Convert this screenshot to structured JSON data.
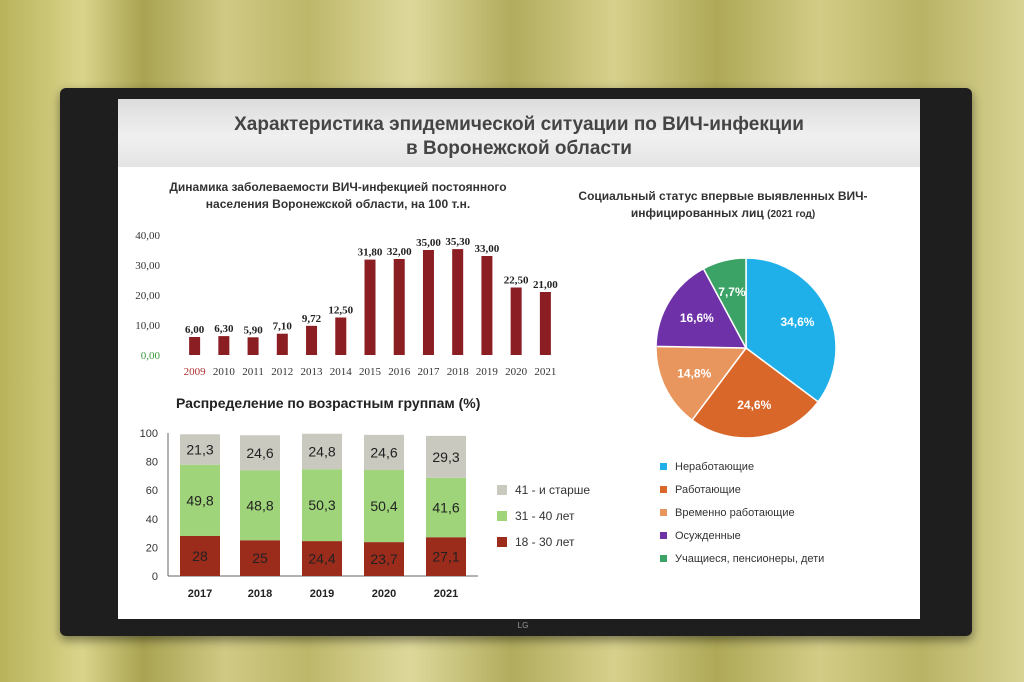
{
  "slide_title_line1": "Характеристика эпидемической ситуации по ВИЧ-инфекции",
  "slide_title_line2": "в Воронежской области",
  "tv_brand": "LG",
  "chart_data": [
    {
      "type": "bar",
      "title": "Динамика заболеваемости ВИЧ-инфекцией постоянного населения Воронежской области, на 100 т.н.",
      "categories": [
        "2009",
        "2010",
        "2011",
        "2012",
        "2013",
        "2014",
        "2015",
        "2016",
        "2017",
        "2018",
        "2019",
        "2020",
        "2021"
      ],
      "values": [
        6.0,
        6.3,
        5.9,
        7.1,
        9.72,
        12.5,
        31.8,
        32.0,
        35.0,
        35.3,
        33.0,
        22.5,
        21.0
      ],
      "value_labels": [
        "6,00",
        "6,30",
        "5,90",
        "7,10",
        "9,72",
        "12,50",
        "31,80",
        "32,00",
        "35,00",
        "35,30",
        "33,00",
        "22,50",
        "21,00"
      ],
      "y_tick_labels": [
        "40,00",
        "30,00",
        "20,00",
        "10,00",
        "0,00"
      ],
      "ylim": [
        0,
        40
      ],
      "color": "#8b1e22"
    },
    {
      "type": "bar",
      "stacked": true,
      "title": "Распределение по возрастным группам (%)",
      "categories": [
        "2017",
        "2018",
        "2019",
        "2020",
        "2021"
      ],
      "series": [
        {
          "name": "18 - 30 лет",
          "values": [
            28,
            25,
            24.4,
            23.7,
            27.1
          ],
          "labels": [
            "28",
            "25",
            "24,4",
            "23,7",
            "27,1"
          ],
          "color": "#9b2b1a"
        },
        {
          "name": "31 - 40 лет",
          "values": [
            49.8,
            48.8,
            50.3,
            50.4,
            41.6
          ],
          "labels": [
            "49,8",
            "48,8",
            "50,3",
            "50,4",
            "41,6"
          ],
          "color": "#9fd47a"
        },
        {
          "name": "41 - и старше",
          "values": [
            21.3,
            24.6,
            24.8,
            24.6,
            29.3
          ],
          "labels": [
            "21,3",
            "24,6",
            "24,8",
            "24,6",
            "29,3"
          ],
          "color": "#c9c9c0"
        }
      ],
      "y_tick_labels": [
        "100",
        "80",
        "60",
        "40",
        "20",
        "0"
      ],
      "ylim": [
        0,
        100
      ]
    },
    {
      "type": "pie",
      "title_main": "Социальный статус впервые выявленных ВИЧ-инфицированных лиц",
      "title_suffix": "(2021 год)",
      "slices": [
        {
          "name": "Неработающие",
          "value": 34.6,
          "label": "34,6%",
          "color": "#1fb0ea"
        },
        {
          "name": "Работающие",
          "value": 24.6,
          "label": "24,6%",
          "color": "#d9672a"
        },
        {
          "name": "Временно работающие",
          "value": 14.8,
          "label": "14,8%",
          "color": "#e8965e"
        },
        {
          "name": "Осужденные",
          "value": 16.6,
          "label": "16,6%",
          "color": "#6f31a8"
        },
        {
          "name": "Учащиеся, пенсионеры, дети",
          "value": 7.7,
          "label": "7,7%",
          "color": "#3aa365"
        }
      ]
    }
  ]
}
